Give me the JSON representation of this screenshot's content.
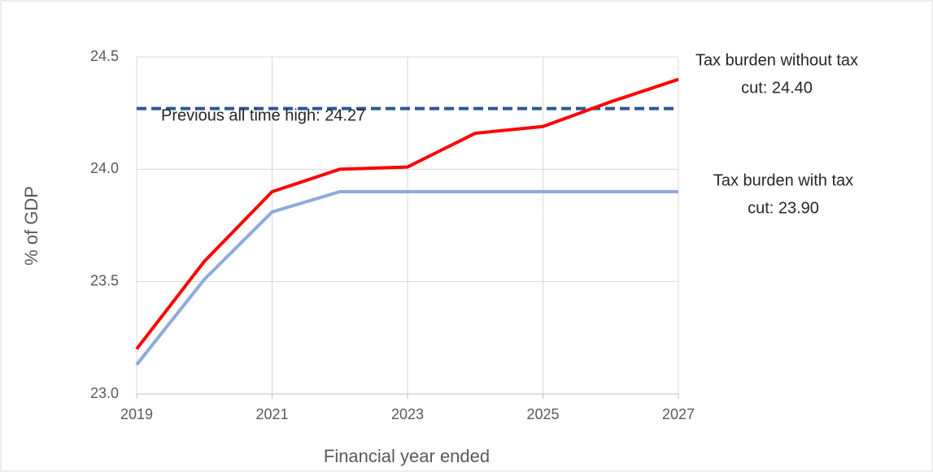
{
  "chart_data": {
    "type": "line",
    "x": [
      2019,
      2020,
      2021,
      2022,
      2023,
      2024,
      2025,
      2026,
      2027
    ],
    "xlim": [
      2019,
      2027
    ],
    "xticks": [
      2019,
      2021,
      2023,
      2025,
      2027
    ],
    "ylim": [
      23.0,
      24.5
    ],
    "yticks": [
      {
        "value": 23.0,
        "label": "23.0"
      },
      {
        "value": 23.5,
        "label": "23.5"
      },
      {
        "value": 24.0,
        "label": "24.0"
      },
      {
        "value": 24.5,
        "label": "24.5"
      }
    ],
    "xlabel": "Financial year ended",
    "ylabel": "% of GDP",
    "grid": true,
    "series": [
      {
        "color": "#ff0000",
        "values": [
          23.2,
          23.59,
          23.9,
          24.0,
          24.01,
          24.16,
          24.19,
          24.3,
          24.4
        ]
      },
      {
        "color": "#8eaadb",
        "values": [
          23.13,
          23.51,
          23.81,
          23.9,
          23.9,
          23.9,
          23.9,
          23.9,
          23.9
        ]
      }
    ],
    "reference_lines": [
      {
        "value": 24.27,
        "color": "#2f5597",
        "dashed": true
      }
    ],
    "annotations": [
      {
        "lines": [
          "Previous all time high: 24.27"
        ]
      },
      {
        "lines": [
          "Tax burden without tax",
          "cut: 24.40"
        ]
      },
      {
        "lines": [
          "Tax burden with tax",
          "cut: 23.90"
        ]
      }
    ]
  }
}
